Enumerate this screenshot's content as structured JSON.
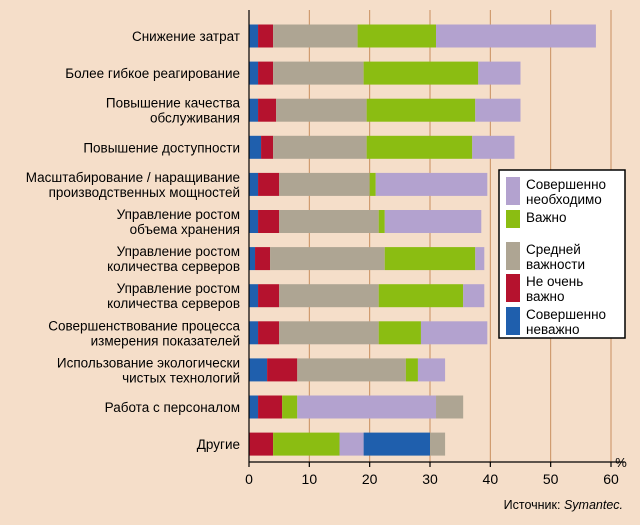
{
  "chart_data": {
    "type": "bar",
    "orientation": "horizontal",
    "stacked": true,
    "categories": [
      [
        "Снижение затрат"
      ],
      [
        "Более гибкое реагирование"
      ],
      [
        "Повышение качества",
        "обслуживания"
      ],
      [
        "Повышение доступности"
      ],
      [
        "Масштабирование / наращивание",
        "производственных мощностей"
      ],
      [
        "Управление ростом",
        "объема хранения"
      ],
      [
        "Управление ростом",
        "количества серверов"
      ],
      [
        "Управление ростом",
        "количества серверов"
      ],
      [
        "Совершенствование процесса",
        "измерения показателей"
      ],
      [
        "Использование экологически",
        "чистых технологий"
      ],
      [
        "Работа с персоналом"
      ],
      [
        "Другие"
      ]
    ],
    "series": [
      {
        "name": [
          "Совершенно",
          "неважно"
        ],
        "color": "#1f5fad",
        "values": [
          1.5,
          1.5,
          1.5,
          2,
          1.5,
          1.5,
          1,
          1.5,
          1.5,
          3,
          1.5,
          0
        ]
      },
      {
        "name": [
          "Не очень",
          "важно"
        ],
        "color": "#b5122e",
        "values": [
          2.5,
          2.5,
          3,
          2,
          3.5,
          3.5,
          2.5,
          3.5,
          3.5,
          5,
          4,
          4
        ]
      },
      {
        "name": [
          "Средней",
          "важности"
        ],
        "color": "#aea593",
        "values": [
          14,
          15,
          15,
          15.5,
          15,
          16.5,
          19,
          16.5,
          16.5,
          18,
          0,
          0
        ]
      },
      {
        "name": [
          "Важно"
        ],
        "color": "#8bbd12",
        "values": [
          13,
          19,
          18,
          17.5,
          1,
          1,
          15,
          14,
          7,
          2,
          2.5,
          11
        ]
      },
      {
        "name": [
          "Совершенно",
          "необходимо"
        ],
        "color": "#b3a2cf",
        "values": [
          26.5,
          7,
          7.5,
          7,
          18.5,
          16,
          1.5,
          3.5,
          11,
          4.5,
          23,
          4
        ]
      },
      {
        "name": [
          "Совершенно",
          "неважно"
        ],
        "color": "#1f5fad",
        "values": [
          0,
          0,
          0,
          0,
          0,
          0,
          0,
          0,
          0,
          0,
          0,
          11
        ]
      },
      {
        "name": [
          "Средней",
          "важности"
        ],
        "color": "#aea593",
        "values": [
          0,
          0,
          0,
          0,
          0,
          0,
          0,
          0,
          0,
          0,
          4.5,
          2.5
        ]
      }
    ],
    "legend": [
      {
        "label": [
          "Совершенно",
          "необходимо"
        ],
        "color": "#b3a2cf"
      },
      {
        "label": [
          "Важно"
        ],
        "color": "#8bbd12"
      },
      {
        "label": [
          "Средней",
          "важности"
        ],
        "color": "#aea593"
      },
      {
        "label": [
          "Не очень",
          "важно"
        ],
        "color": "#b5122e"
      },
      {
        "label": [
          "Совершенно",
          "неважно"
        ],
        "color": "#1f5fad"
      }
    ],
    "legend_position": "right",
    "xlim": [
      0,
      60
    ],
    "xticks": [
      0,
      10,
      20,
      30,
      40,
      50,
      60
    ],
    "x_unit": "%",
    "grid": true,
    "source_prefix": "Источник: ",
    "source_name": "Symantec."
  }
}
